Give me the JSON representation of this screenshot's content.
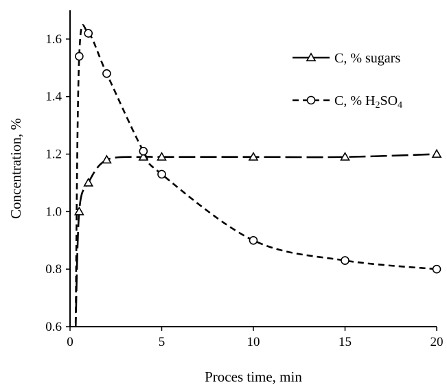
{
  "chart_data": {
    "type": "line",
    "xlabel": "Proces time, min",
    "ylabel": "Concentration, %",
    "xlim": [
      0,
      20
    ],
    "ylim": [
      0.6,
      1.7
    ],
    "x_ticks": [
      0,
      5,
      10,
      15,
      20
    ],
    "y_ticks": [
      0.6,
      0.8,
      1.0,
      1.2,
      1.4,
      1.6
    ],
    "y_tick_labels": [
      "0.6",
      "0.8",
      "1.0",
      "1.2",
      "1.4",
      "1.6"
    ],
    "grid": false,
    "legend_position": "top-right",
    "series": [
      {
        "name": "C, % sugars",
        "legend_parts": [
          "C, % sugars"
        ],
        "marker": "triangle",
        "line_style": "long-dash",
        "x": [
          0.5,
          1,
          2,
          4,
          5,
          10,
          15,
          20
        ],
        "y": [
          1.0,
          1.1,
          1.18,
          1.19,
          1.19,
          1.19,
          1.19,
          1.2
        ]
      },
      {
        "name": "C, % H2SO4",
        "legend_parts": [
          "C, % H",
          "2",
          "SO",
          "4"
        ],
        "marker": "circle",
        "line_style": "short-dash",
        "x": [
          0.5,
          1,
          2,
          4,
          5,
          10,
          15,
          20
        ],
        "y": [
          1.54,
          1.62,
          1.48,
          1.21,
          1.13,
          0.9,
          0.83,
          0.8
        ]
      }
    ]
  }
}
